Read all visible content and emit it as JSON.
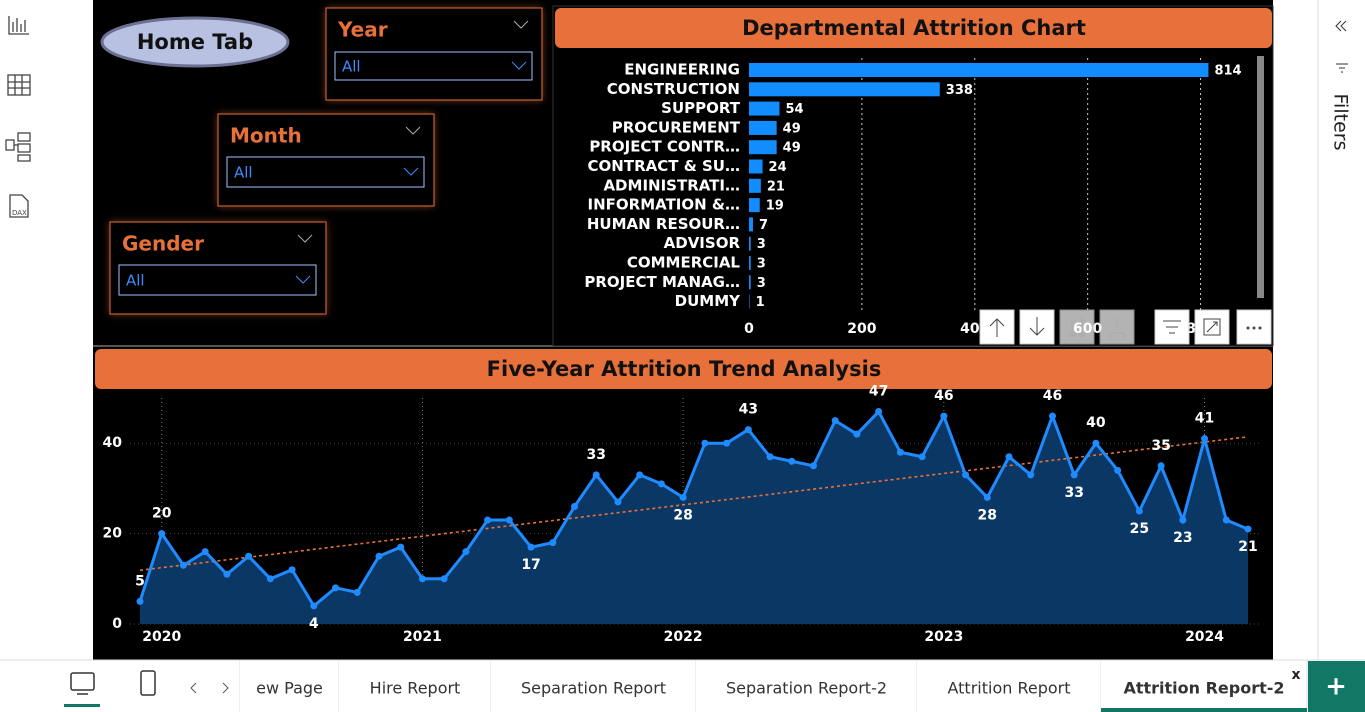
{
  "home_button": "Home Tab",
  "slicers": [
    {
      "title": "Year",
      "selection": "All"
    },
    {
      "title": "Month",
      "selection": "All"
    },
    {
      "title": "Gender",
      "selection": "All"
    }
  ],
  "chart_data": [
    {
      "type": "bar",
      "orientation": "horizontal",
      "title": "Departmental Attrition Chart",
      "categories": [
        "ENGINEERING",
        "CONSTRUCTION",
        "SUPPORT",
        "PROCUREMENT",
        "PROJECT CONTR…",
        "CONTRACT & SU…",
        "ADMINISTRATI…",
        "INFORMATION &…",
        "HUMAN RESOUR…",
        "ADVISOR",
        "COMMERCIAL",
        "PROJECT MANAG…",
        "DUMMY"
      ],
      "values": [
        814,
        338,
        54,
        49,
        49,
        24,
        21,
        19,
        7,
        3,
        3,
        3,
        1
      ],
      "color": "#118dff",
      "xlim": [
        0,
        900
      ],
      "xticks": [
        0,
        200,
        400,
        600,
        800
      ],
      "grid": true
    },
    {
      "type": "line",
      "title": "Five-Year Attrition Trend Analysis",
      "categories": [
        null,
        "2020",
        null,
        null,
        null,
        null,
        null,
        null,
        null,
        null,
        null,
        null,
        null,
        "2021",
        null,
        null,
        null,
        null,
        null,
        null,
        null,
        null,
        null,
        null,
        null,
        "2022",
        null,
        null,
        null,
        null,
        null,
        null,
        null,
        null,
        null,
        null,
        null,
        "2023",
        null,
        null,
        null,
        null,
        null,
        null,
        null,
        null,
        null,
        null,
        null,
        "2024",
        null,
        null
      ],
      "values": [
        5,
        20,
        13,
        16,
        11,
        15,
        10,
        12,
        4,
        8,
        7,
        15,
        17,
        10,
        10,
        16,
        23,
        23,
        17,
        18,
        26,
        33,
        27,
        33,
        31,
        28,
        40,
        40,
        43,
        37,
        36,
        35,
        45,
        42,
        47,
        38,
        37,
        46,
        33,
        28,
        37,
        33,
        46,
        33,
        40,
        34,
        25,
        35,
        23,
        41,
        23,
        21
      ],
      "value_labels": [
        "5",
        "20",
        null,
        null,
        null,
        null,
        null,
        null,
        "4",
        null,
        null,
        null,
        null,
        null,
        null,
        null,
        null,
        null,
        "17",
        null,
        null,
        "33",
        null,
        null,
        null,
        "28",
        null,
        null,
        "43",
        null,
        null,
        null,
        null,
        null,
        "47",
        null,
        null,
        "46",
        null,
        "28",
        null,
        null,
        "46",
        "33",
        "40",
        null,
        "25",
        "35",
        "23",
        "41",
        null,
        "21"
      ],
      "color": "#1f8bff",
      "area_color": "#0c3a6a",
      "trend_line": true,
      "trend_color": "#e8703a",
      "ylim": [
        0,
        50
      ],
      "yticks": [
        0,
        20,
        40
      ],
      "grid": true
    }
  ],
  "filters_pane": {
    "title": "Filters"
  },
  "tabs": [
    {
      "label": "ew Page",
      "active": false
    },
    {
      "label": "Hire Report",
      "active": false
    },
    {
      "label": "Separation Report",
      "active": false
    },
    {
      "label": "Separation Report-2",
      "active": false
    },
    {
      "label": "Attrition Report",
      "active": false
    },
    {
      "label": "Attrition Report-2",
      "active": true
    }
  ],
  "close_tab": "x",
  "add_tab": "+"
}
